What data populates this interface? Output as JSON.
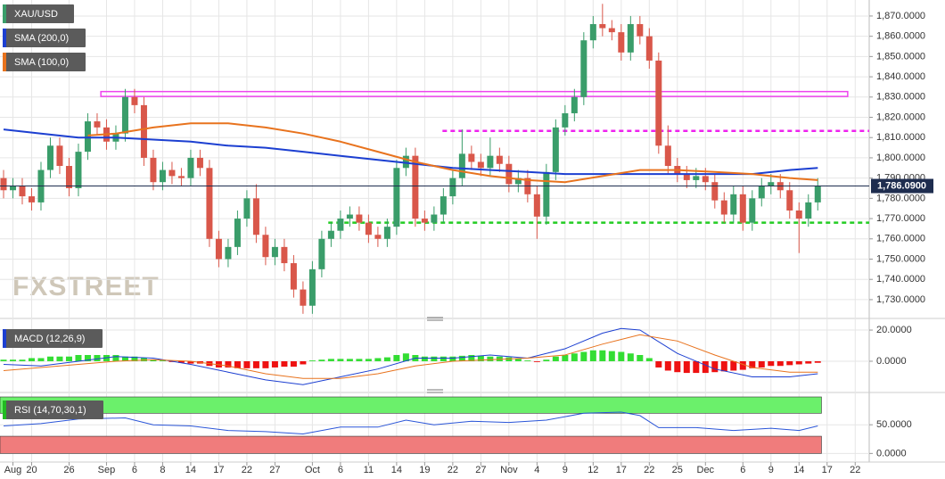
{
  "chart_data": [
    {
      "type": "candlestick",
      "watermark": "FXSTREET",
      "xlim": [
        -0.38,
        92.5
      ],
      "ylim": [
        1721.6,
        1877.9
      ],
      "yticks": [
        {
          "value": 1730,
          "label": "1,730.0000"
        },
        {
          "value": 1740,
          "label": "1,740.0000"
        },
        {
          "value": 1750,
          "label": "1,750.0000"
        },
        {
          "value": 1760,
          "label": "1,760.0000"
        },
        {
          "value": 1770,
          "label": "1,770.0000"
        },
        {
          "value": 1780,
          "label": "1,780.0000"
        },
        {
          "value": 1790,
          "label": "1,790.0000"
        },
        {
          "value": 1800,
          "label": "1,800.0000"
        },
        {
          "value": 1810,
          "label": "1,810.0000"
        },
        {
          "value": 1820,
          "label": "1,820.0000"
        },
        {
          "value": 1830,
          "label": "1,830.0000"
        },
        {
          "value": 1840,
          "label": "1,840.0000"
        },
        {
          "value": 1850,
          "label": "1,850.0000"
        },
        {
          "value": 1860,
          "label": "1,860.0000"
        },
        {
          "value": 1870,
          "label": "1,870.0000"
        }
      ],
      "grid": true,
      "series": [
        {
          "name": "XAU/USD",
          "color": "#3a9d6a",
          "up_color": "#3a9d6a",
          "down_color": "#d9574a",
          "open": [
            1790,
            1784,
            1786,
            1781,
            1778,
            1794,
            1806,
            1796,
            1785,
            1803,
            1818,
            1815,
            1808,
            1812,
            1830,
            1826,
            1800,
            1788,
            1794,
            1791,
            1790,
            1800,
            1795,
            1760,
            1750,
            1756,
            1770,
            1780,
            1762,
            1751,
            1756,
            1748,
            1735,
            1727,
            1745,
            1760,
            1764,
            1770,
            1772,
            1768,
            1762,
            1760,
            1766,
            1795,
            1801,
            1770,
            1768,
            1772,
            1781,
            1790,
            1802,
            1798,
            1795,
            1801,
            1797,
            1787,
            1790,
            1782,
            1771,
            1793,
            1815,
            1822,
            1830,
            1858,
            1866,
            1864,
            1862,
            1852,
            1866,
            1860,
            1848,
            1806,
            1796,
            1792,
            1789,
            1791,
            1788,
            1779,
            1772,
            1782,
            1768,
            1780,
            1786,
            1788,
            1784,
            1774,
            1770,
            1778
          ],
          "high": [
            1794,
            1790,
            1790,
            1785,
            1798,
            1810,
            1810,
            1800,
            1807,
            1822,
            1822,
            1819,
            1816,
            1834,
            1834,
            1830,
            1804,
            1798,
            1798,
            1795,
            1804,
            1804,
            1799,
            1764,
            1760,
            1774,
            1784,
            1787,
            1766,
            1760,
            1760,
            1752,
            1739,
            1749,
            1764,
            1768,
            1774,
            1776,
            1776,
            1772,
            1766,
            1770,
            1799,
            1805,
            1805,
            1774,
            1776,
            1785,
            1794,
            1814,
            1806,
            1802,
            1810,
            1805,
            1801,
            1794,
            1794,
            1786,
            1797,
            1819,
            1826,
            1834,
            1862,
            1870,
            1876,
            1868,
            1866,
            1870,
            1870,
            1864,
            1852,
            1816,
            1800,
            1796,
            1795,
            1795,
            1792,
            1783,
            1786,
            1786,
            1784,
            1790,
            1792,
            1792,
            1788,
            1778,
            1782,
            1790
          ],
          "low": [
            1780,
            1780,
            1777,
            1774,
            1774,
            1790,
            1792,
            1781,
            1781,
            1799,
            1811,
            1804,
            1804,
            1808,
            1822,
            1796,
            1784,
            1784,
            1787,
            1786,
            1786,
            1791,
            1756,
            1746,
            1746,
            1752,
            1766,
            1758,
            1747,
            1747,
            1744,
            1731,
            1723,
            1723,
            1741,
            1756,
            1760,
            1766,
            1764,
            1758,
            1756,
            1756,
            1762,
            1791,
            1766,
            1764,
            1764,
            1768,
            1777,
            1786,
            1794,
            1791,
            1791,
            1793,
            1783,
            1783,
            1778,
            1760,
            1767,
            1789,
            1811,
            1818,
            1826,
            1854,
            1860,
            1858,
            1848,
            1848,
            1856,
            1844,
            1802,
            1792,
            1788,
            1785,
            1785,
            1784,
            1775,
            1768,
            1768,
            1764,
            1764,
            1776,
            1782,
            1780,
            1770,
            1753,
            1766,
            1774
          ],
          "close": [
            1784,
            1786,
            1781,
            1778,
            1794,
            1806,
            1796,
            1785,
            1803,
            1818,
            1815,
            1808,
            1812,
            1830,
            1826,
            1800,
            1788,
            1794,
            1791,
            1790,
            1800,
            1795,
            1760,
            1750,
            1756,
            1770,
            1780,
            1762,
            1751,
            1756,
            1748,
            1735,
            1727,
            1745,
            1760,
            1764,
            1770,
            1772,
            1768,
            1762,
            1760,
            1766,
            1795,
            1801,
            1770,
            1768,
            1772,
            1781,
            1790,
            1802,
            1798,
            1795,
            1801,
            1797,
            1787,
            1790,
            1782,
            1771,
            1793,
            1815,
            1822,
            1830,
            1858,
            1866,
            1864,
            1862,
            1852,
            1866,
            1860,
            1848,
            1806,
            1796,
            1792,
            1789,
            1791,
            1788,
            1779,
            1772,
            1782,
            1768,
            1780,
            1786,
            1788,
            1784,
            1774,
            1770,
            1778,
            1786
          ]
        }
      ],
      "lines": [
        {
          "name": "SMA (200,0)",
          "color": "#1c3fd1",
          "x": [
            0,
            4,
            8,
            12,
            16,
            20,
            24,
            28,
            32,
            36,
            40,
            44,
            48,
            52,
            56,
            60,
            64,
            68,
            72,
            76,
            80,
            84,
            87
          ],
          "values": [
            1814,
            1812,
            1810,
            1810,
            1809,
            1808,
            1806,
            1805,
            1803,
            1801,
            1799,
            1797,
            1795,
            1794,
            1793,
            1792,
            1792,
            1792,
            1792,
            1792,
            1792,
            1794,
            1795
          ]
        },
        {
          "name": "SMA (100,0)",
          "color": "#e8731e",
          "x": [
            9,
            12,
            16,
            20,
            24,
            28,
            32,
            36,
            40,
            44,
            48,
            52,
            56,
            60,
            64,
            68,
            72,
            76,
            80,
            84,
            87
          ],
          "values": [
            1811,
            1812,
            1815,
            1817,
            1817,
            1815,
            1812,
            1808,
            1803,
            1798,
            1794,
            1791,
            1789,
            1788,
            1791,
            1794,
            1794,
            1793,
            1792,
            1790,
            1789
          ]
        }
      ],
      "levels": [
        {
          "style": "box",
          "from": 1830.3,
          "to": 1832.7,
          "x": [
            10.4,
            90.2
          ],
          "color": "#ee44ee"
        },
        {
          "style": "dashed",
          "value": 1813.3,
          "x": [
            46.9,
            92.5
          ],
          "color": "#ee22ee"
        },
        {
          "style": "dashed",
          "value": 1768,
          "x": [
            34.7,
            92.5
          ],
          "color": "#22cc22"
        }
      ],
      "last_price": {
        "value": 1786.09,
        "label": "1,786.0900",
        "color": "#1e2d4f"
      }
    },
    {
      "type": "macd",
      "title": "MACD (12,26,9)",
      "color": "#1c3fd1",
      "xlim": [
        -0.38,
        92.5
      ],
      "ylim": [
        -18.9,
        24.6
      ],
      "yticks": [
        {
          "value": 20,
          "label": "20.0000"
        },
        {
          "value": 0,
          "label": "0.0000"
        }
      ],
      "grid": true,
      "histogram": {
        "up_color": "#33dd33",
        "down_color": "#ee1111",
        "values": [
          1,
          1,
          1,
          2,
          2,
          3,
          3,
          3,
          4,
          4,
          4,
          4,
          4,
          3,
          3,
          2,
          1,
          0.5,
          -0.5,
          -1,
          -1.5,
          -1.5,
          -3,
          -4,
          -4,
          -4.5,
          -4.5,
          -4.5,
          -4.5,
          -4,
          -3.5,
          -3.5,
          -2,
          0.5,
          1,
          1.5,
          1.5,
          1.5,
          1.5,
          1.5,
          2,
          2.5,
          4,
          5,
          4,
          3,
          3,
          3,
          3,
          3.5,
          4,
          3.5,
          3,
          3,
          2.5,
          1.5,
          0.5,
          -0.5,
          1,
          3,
          4,
          5,
          6,
          7,
          7,
          6.5,
          6,
          5,
          4,
          2,
          -4,
          -6,
          -7,
          -7.5,
          -7.5,
          -7.5,
          -7,
          -6.5,
          -6,
          -5.5,
          -4.5,
          -4,
          -3,
          -3,
          -2.5,
          -2,
          -1.5,
          -1
        ]
      },
      "lines": [
        {
          "color": "#1c3fd1",
          "x": [
            0,
            4,
            8,
            12,
            16,
            20,
            24,
            28,
            32,
            36,
            40,
            44,
            48,
            52,
            56,
            60,
            64,
            66,
            68,
            72,
            76,
            80,
            84,
            87
          ],
          "values": [
            -2,
            -3,
            0,
            3,
            2,
            -2,
            -7,
            -12,
            -15,
            -10,
            -5,
            2,
            2,
            4,
            2,
            8,
            18,
            21,
            20,
            5,
            -5,
            -10,
            -10,
            -8
          ]
        },
        {
          "color": "#e8731e",
          "x": [
            0,
            4,
            8,
            12,
            16,
            20,
            24,
            28,
            32,
            36,
            40,
            44,
            48,
            52,
            56,
            60,
            64,
            68,
            72,
            76,
            80,
            84,
            87
          ],
          "values": [
            -6,
            -4,
            -2,
            0,
            1,
            0,
            -3,
            -8,
            -11,
            -11,
            -8,
            -3,
            0,
            1,
            2,
            4,
            11,
            17,
            13,
            4,
            -4,
            -7,
            -7
          ]
        }
      ]
    },
    {
      "type": "rsi",
      "title": "RSI (14,70,30,1)",
      "color": "#22bb22",
      "xlim": [
        -0.38,
        92.5
      ],
      "ylim": [
        -15,
        98.5
      ],
      "yticks": [
        {
          "value": 50,
          "label": "50.0000"
        },
        {
          "value": 0,
          "label": "0.0000"
        }
      ],
      "grid": true,
      "xticks": [
        {
          "value": 1,
          "label": "Aug"
        },
        {
          "value": 3,
          "label": "20"
        },
        {
          "value": 7,
          "label": "26"
        },
        {
          "value": 11,
          "label": "Sep"
        },
        {
          "value": 14,
          "label": "6"
        },
        {
          "value": 17,
          "label": "8"
        },
        {
          "value": 20,
          "label": "14"
        },
        {
          "value": 23,
          "label": "17"
        },
        {
          "value": 26,
          "label": "22"
        },
        {
          "value": 29,
          "label": "27"
        },
        {
          "value": 33,
          "label": "Oct"
        },
        {
          "value": 36,
          "label": "6"
        },
        {
          "value": 39,
          "label": "11"
        },
        {
          "value": 42,
          "label": "14"
        },
        {
          "value": 45,
          "label": "19"
        },
        {
          "value": 48,
          "label": "22"
        },
        {
          "value": 51,
          "label": "27"
        },
        {
          "value": 54,
          "label": "Nov"
        },
        {
          "value": 57,
          "label": "4"
        },
        {
          "value": 60,
          "label": "9"
        },
        {
          "value": 63,
          "label": "12"
        },
        {
          "value": 66,
          "label": "17"
        },
        {
          "value": 69,
          "label": "22"
        },
        {
          "value": 72,
          "label": "25"
        },
        {
          "value": 75,
          "label": "Dec"
        },
        {
          "value": 79,
          "label": "6"
        },
        {
          "value": 82,
          "label": "9"
        },
        {
          "value": 85,
          "label": "14"
        },
        {
          "value": 88,
          "label": "17"
        },
        {
          "value": 91,
          "label": "22"
        }
      ],
      "bands": [
        {
          "from": 70,
          "to": 100,
          "x": [
            -0.38,
            87.4
          ],
          "color": "#6bf06b"
        },
        {
          "from": 0,
          "to": 30,
          "x": [
            -0.38,
            87.4
          ],
          "color": "#f07c7c"
        }
      ],
      "lines": [
        {
          "color": "#2a55d8",
          "x": [
            0,
            4,
            8,
            13,
            16,
            20,
            24,
            28,
            32,
            36,
            40,
            43,
            46,
            50,
            54,
            58,
            62,
            66,
            68,
            70,
            74,
            78,
            82,
            85,
            87
          ],
          "values": [
            48,
            52,
            60,
            62,
            50,
            48,
            40,
            38,
            34,
            46,
            46,
            58,
            50,
            56,
            54,
            58,
            70,
            72,
            66,
            45,
            45,
            40,
            44,
            40,
            48
          ]
        }
      ]
    }
  ]
}
